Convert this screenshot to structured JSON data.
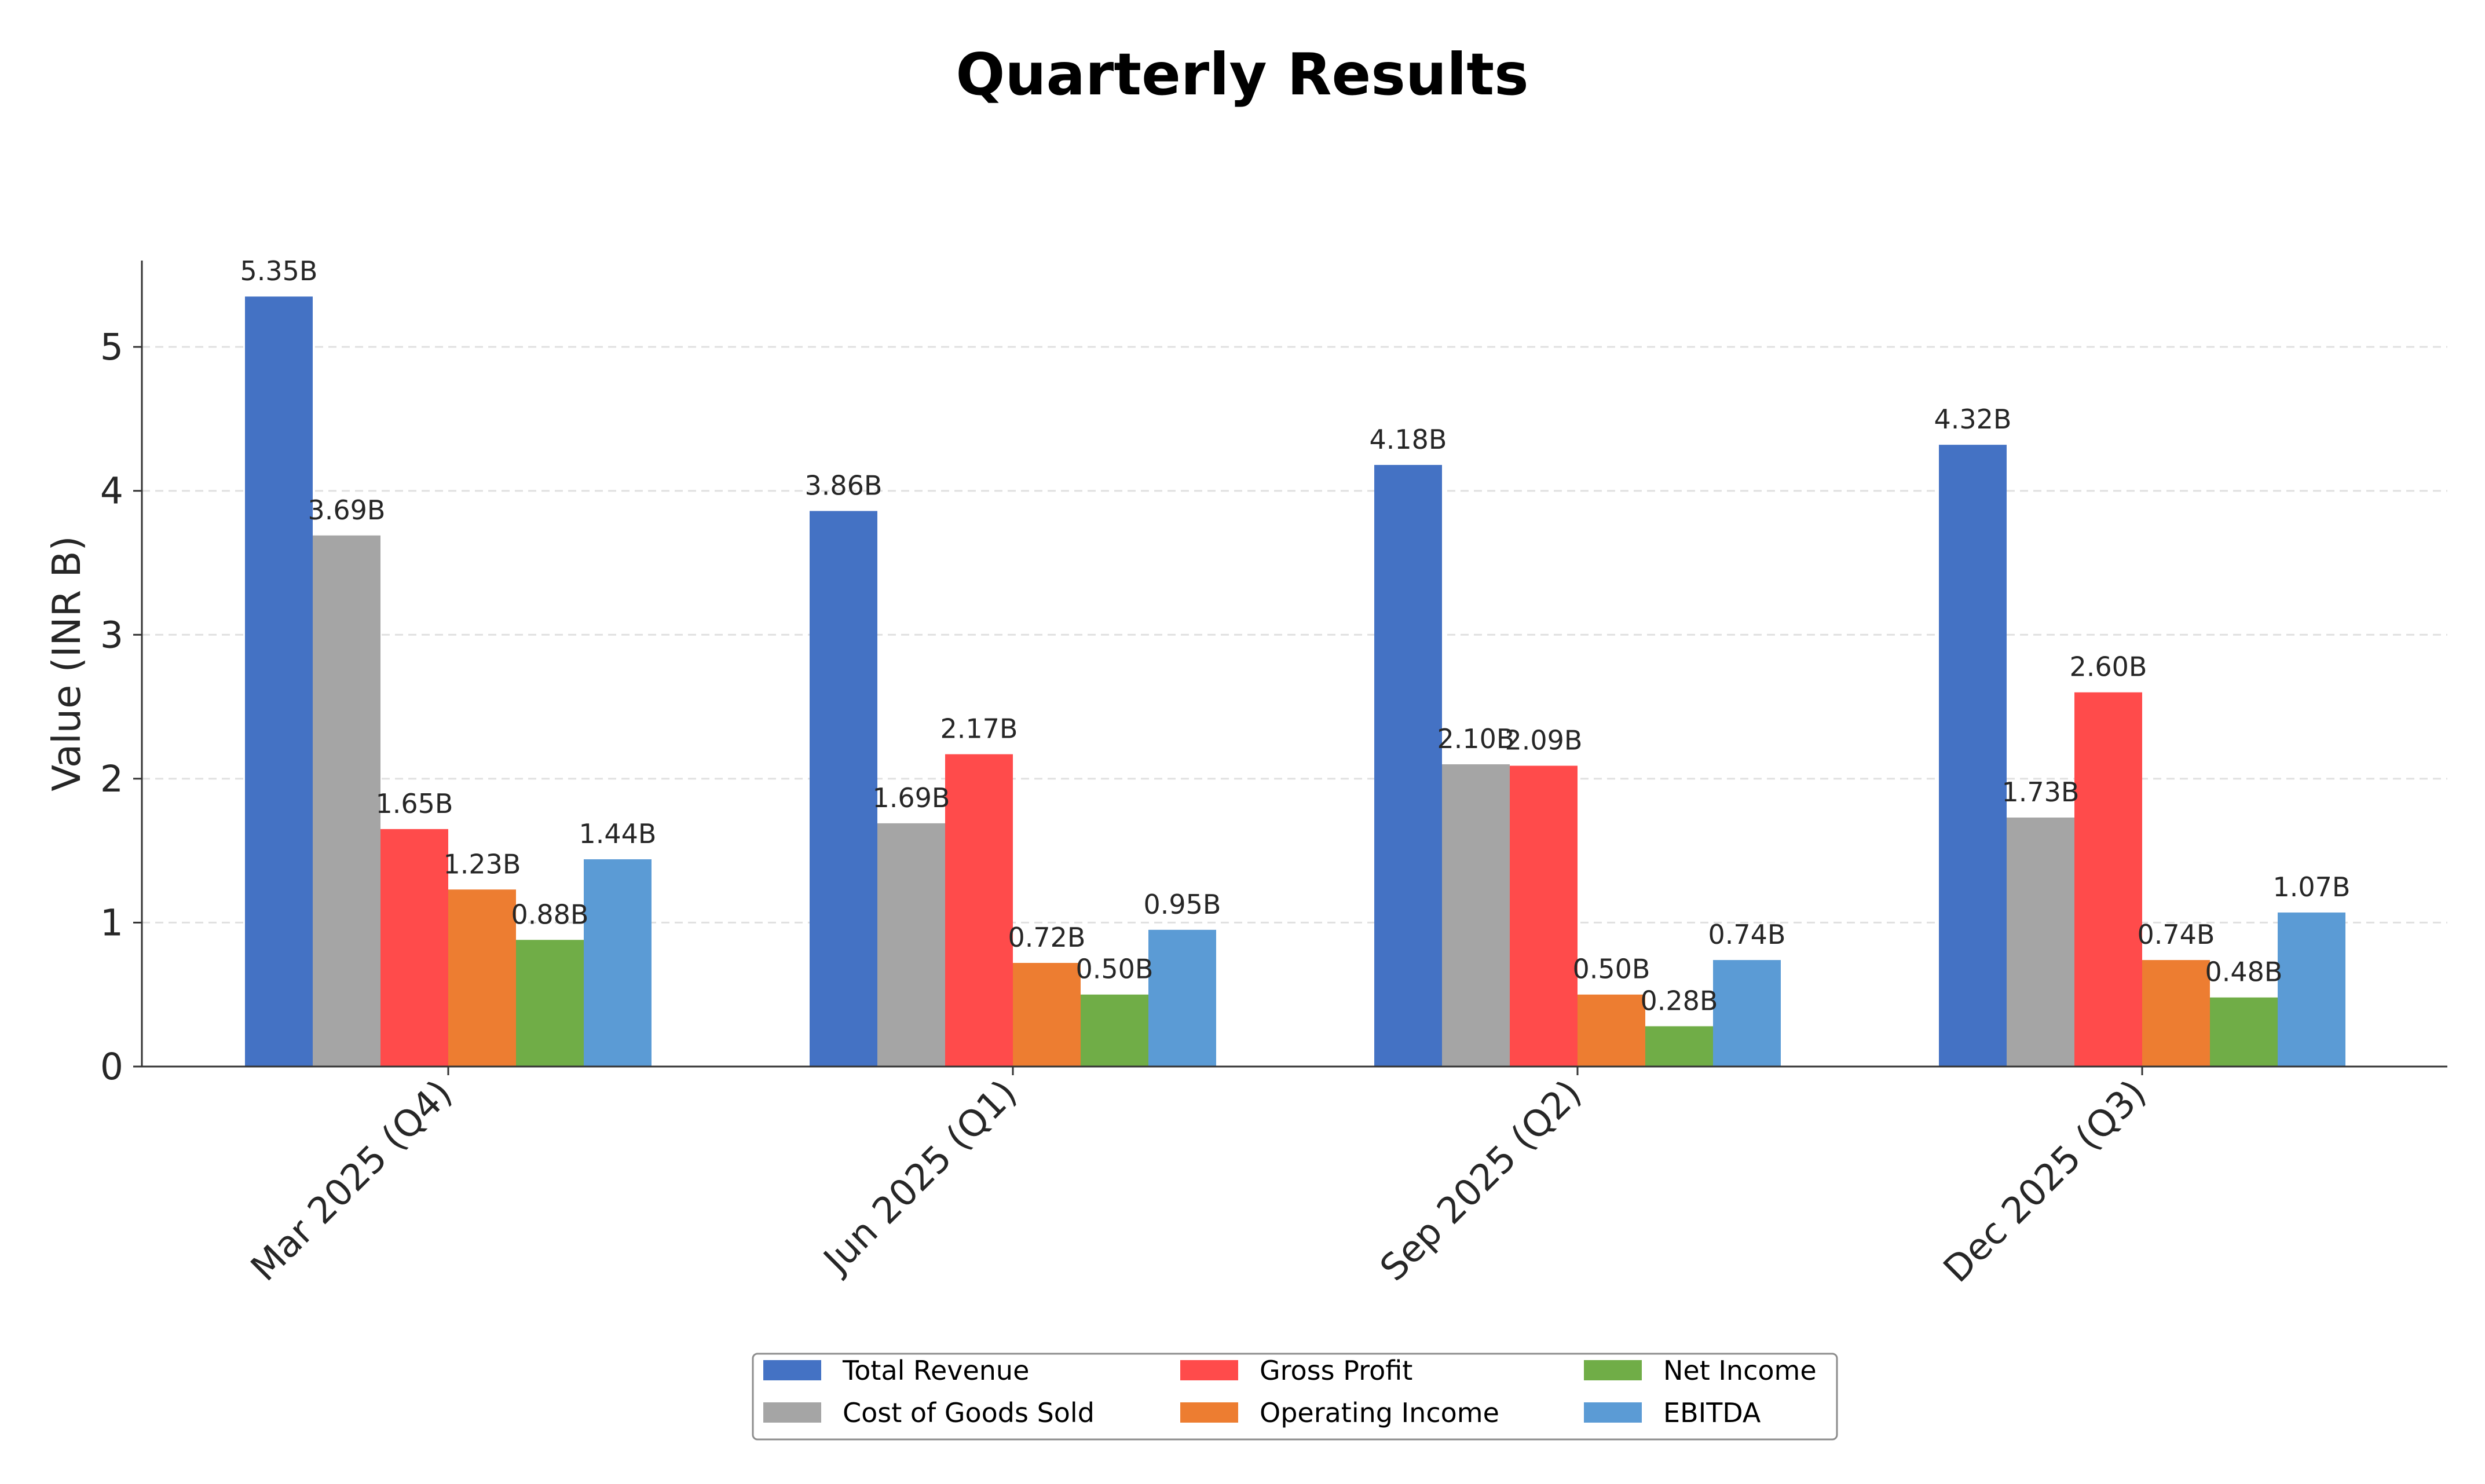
{
  "chart_data": {
    "type": "bar",
    "title": "Quarterly Results",
    "xlabel": "",
    "ylabel": "Value (INR B)",
    "ylim": [
      0,
      5.6
    ],
    "yticks": [
      0,
      1,
      2,
      3,
      4,
      5
    ],
    "grid": true,
    "legend_position": "bottom-center",
    "categories": [
      "Mar 2025 (Q4)",
      "Jun 2025 (Q1)",
      "Sep 2025 (Q2)",
      "Dec 2025 (Q3)"
    ],
    "series": [
      {
        "name": "Total Revenue",
        "color": "#4472c4",
        "values": [
          5.35,
          3.86,
          4.18,
          4.32
        ],
        "labels": [
          "5.35B",
          "3.86B",
          "4.18B",
          "4.32B"
        ]
      },
      {
        "name": "Cost of Goods Sold",
        "color": "#a5a5a5",
        "values": [
          3.69,
          1.69,
          2.1,
          1.73
        ],
        "labels": [
          "3.69B",
          "1.69B",
          "2.10B",
          "1.73B"
        ]
      },
      {
        "name": "Gross Profit",
        "color": "#ff4b4b",
        "values": [
          1.65,
          2.17,
          2.09,
          2.6
        ],
        "labels": [
          "1.65B",
          "2.17B",
          "2.09B",
          "2.60B"
        ]
      },
      {
        "name": "Operating Income",
        "color": "#ed7d31",
        "values": [
          1.23,
          0.72,
          0.5,
          0.74
        ],
        "labels": [
          "1.23B",
          "0.72B",
          "0.50B",
          "0.74B"
        ]
      },
      {
        "name": "Net Income",
        "color": "#70ad47",
        "values": [
          0.88,
          0.5,
          0.28,
          0.48
        ],
        "labels": [
          "0.88B",
          "0.50B",
          "0.28B",
          "0.48B"
        ]
      },
      {
        "name": "EBITDA",
        "color": "#5b9bd5",
        "values": [
          1.44,
          0.95,
          0.74,
          1.07
        ],
        "labels": [
          "1.44B",
          "0.95B",
          "0.74B",
          "1.07B"
        ]
      }
    ]
  }
}
